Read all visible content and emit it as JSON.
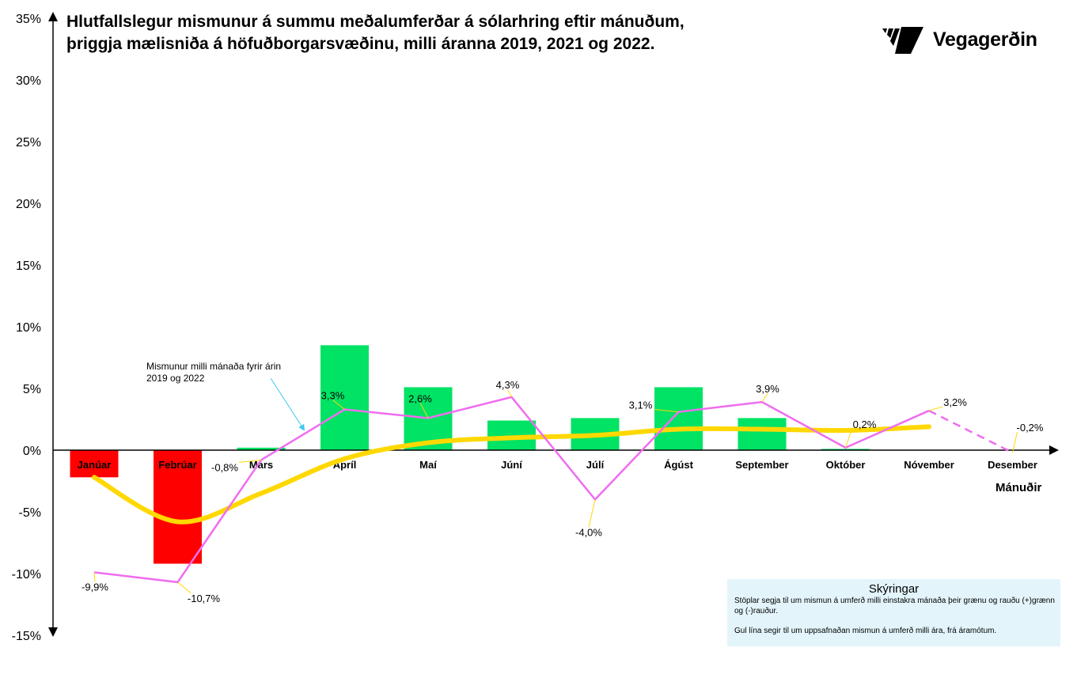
{
  "title": "Hlutfallslegur mismunur á summu meðalumferðar á sólarhring eftir mánuðum, þriggja mælisniða á höfuðborgarsvæðinu, milli áranna 2019, 2021 og 2022.",
  "logo": {
    "text": "Vegagerðin"
  },
  "legend": {
    "title": "Skýringar",
    "line1": "Stöplar segja til um mismun á umferð milli einstakra mánaða  þeir grænu og rauðu (+)grænn og (-)rauður.",
    "line2": "Gul lína segir til um uppsafnaðan mismun á umferð milli ára, frá áramótum."
  },
  "annotation": "Mismunur milli mánaða fyrir árin 2019 og 2022",
  "chart_data": {
    "type": "bar",
    "title": "Hlutfallslegur mismunur á summu meðalumferðar á sólarhring eftir mánuðum, þriggja mælisniða á höfuðborgarsvæðinu, milli áranna 2019, 2021 og 2022.",
    "xlabel": "Mánuðir",
    "ylabel": "",
    "ylim": [
      -15,
      35
    ],
    "yticks": [
      -15,
      -10,
      -5,
      0,
      5,
      10,
      15,
      20,
      25,
      30,
      35
    ],
    "ytick_labels": [
      "-15%",
      "-10%",
      "-5%",
      "0%",
      "5%",
      "10%",
      "15%",
      "20%",
      "25%",
      "30%",
      "35%"
    ],
    "categories": [
      "Janúar",
      "Febrúar",
      "Mars",
      "Apríl",
      "Maí",
      "Júní",
      "Júlí",
      "Ágúst",
      "September",
      "Október",
      "Nóvember",
      "Desember"
    ],
    "series": [
      {
        "name": "Mismunur einstakra mánaða",
        "type": "bar",
        "values": [
          -2.2,
          -9.2,
          0.2,
          8.5,
          5.1,
          2.4,
          2.6,
          5.1,
          2.6,
          0.1,
          null,
          null
        ],
        "pos_color": "#00e364",
        "neg_color": "#ff0000"
      },
      {
        "name": "Mismunur milli mánaða fyrir árin 2019 og 2022",
        "type": "line",
        "color": "#f06cf0",
        "values": [
          -9.9,
          -10.7,
          -0.8,
          3.3,
          2.6,
          4.3,
          -4.0,
          3.1,
          3.9,
          0.2,
          3.2,
          -0.2
        ],
        "labels": [
          "-9,9%",
          "-10,7%",
          "-0,8%",
          "3,3%",
          "2,6%",
          "4,3%",
          "-4,0%",
          "3,1%",
          "3,9%",
          "0,2%",
          "3,2%",
          "-0,2%"
        ],
        "dashed_last_segment": true
      },
      {
        "name": "Uppsafnaður mismunur",
        "type": "line",
        "color": "#ffd800",
        "values": [
          -2.2,
          -5.8,
          -3.5,
          -0.7,
          0.6,
          1.0,
          1.2,
          1.7,
          1.7,
          1.6,
          1.9,
          null
        ]
      }
    ],
    "grid": false,
    "legend_position": "bottom-right"
  }
}
